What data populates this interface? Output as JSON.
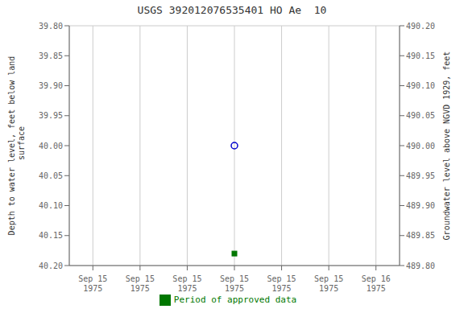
{
  "chart_data": {
    "type": "scatter",
    "title": "USGS 392012076535401 HO Ae  10",
    "ylabel": "Depth to water level, feet below land\n surface",
    "y2label": "Groundwater level above NGVD 1929, feet",
    "categories": [
      "Sep 15\n1975",
      "Sep 15\n1975",
      "Sep 15\n1975",
      "Sep 15\n1975",
      "Sep 15\n1975",
      "Sep 15\n1975",
      "Sep 16\n1975"
    ],
    "series": [
      {
        "color": "#0000cc",
        "marker": "circle",
        "values": [
          null,
          null,
          null,
          40.0,
          null,
          null,
          null
        ]
      },
      {
        "name": "Period of approved data",
        "color": "#007700",
        "marker": "square",
        "values": [
          null,
          null,
          null,
          40.18,
          null,
          null,
          null
        ]
      }
    ],
    "ylim": [
      40.2,
      39.8
    ],
    "yticks": [
      {
        "value": 39.8,
        "label": "39.80"
      },
      {
        "value": 39.85,
        "label": "39.85"
      },
      {
        "value": 39.9,
        "label": "39.90"
      },
      {
        "value": 39.95,
        "label": "39.95"
      },
      {
        "value": 40.0,
        "label": "40.00"
      },
      {
        "value": 40.05,
        "label": "40.05"
      },
      {
        "value": 40.1,
        "label": "40.10"
      },
      {
        "value": 40.15,
        "label": "40.15"
      },
      {
        "value": 40.2,
        "label": "40.20"
      }
    ],
    "y2lim": [
      489.8,
      490.2
    ],
    "y2ticks": [
      {
        "value": 490.2,
        "label": "490.20"
      },
      {
        "value": 490.15,
        "label": "490.15"
      },
      {
        "value": 490.1,
        "label": "490.10"
      },
      {
        "value": 490.05,
        "label": "490.05"
      },
      {
        "value": 490.0,
        "label": "490.00"
      },
      {
        "value": 489.95,
        "label": "489.95"
      },
      {
        "value": 489.9,
        "label": "489.90"
      },
      {
        "value": 489.85,
        "label": "489.85"
      },
      {
        "value": 489.8,
        "label": "489.80"
      }
    ],
    "grid": true,
    "legend": "bottom"
  }
}
